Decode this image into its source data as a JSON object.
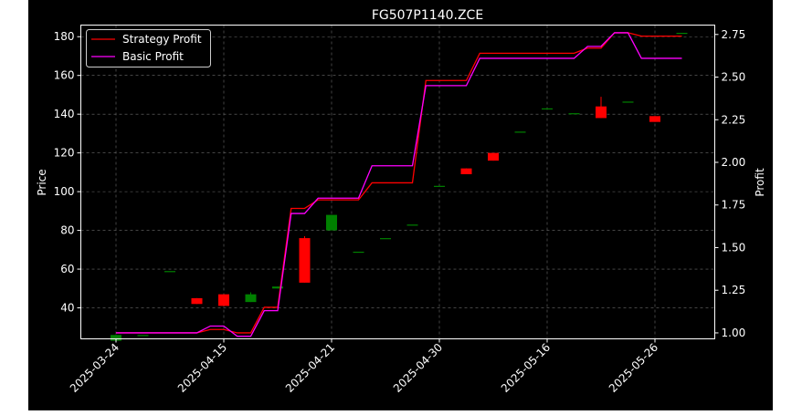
{
  "chart_data": {
    "type": "candlestick",
    "title": "FG507P1140.ZCE",
    "ylabel_left": "Price",
    "ylabel_right": "Profit",
    "xlabel": "",
    "ylim_left": [
      24,
      186
    ],
    "ylim_right": [
      0.965,
      2.805
    ],
    "grid": true,
    "legend_position": "top-left",
    "x_tick_labels": [
      "2025-03-24",
      "2025-04-15",
      "2025-04-21",
      "2025-04-30",
      "2025-05-16",
      "2025-05-26"
    ],
    "y_ticks_left": [
      40,
      60,
      80,
      100,
      120,
      140,
      160,
      180
    ],
    "y_ticks_right": [
      "1.00",
      "1.25",
      "1.50",
      "1.75",
      "2.00",
      "2.25",
      "2.50",
      "2.75"
    ],
    "colors": {
      "up": "#008000",
      "down": "#ff0000",
      "strategy": "#ff0000",
      "basic": "#ff00ff",
      "grid": "#6e6e6e",
      "background": "#000000",
      "text": "#ffffff"
    },
    "candles": [
      {
        "i": 0,
        "open": 23,
        "close": 26,
        "high": 26,
        "low": 23
      },
      {
        "i": 1,
        "open": 26,
        "close": 26,
        "high": 26,
        "low": 26
      },
      {
        "i": 2,
        "open": 59,
        "close": 59,
        "high": 59,
        "low": 59
      },
      {
        "i": 3,
        "open": 45,
        "close": 42,
        "high": 45,
        "low": 42
      },
      {
        "i": 4,
        "open": 47,
        "close": 41,
        "high": 47,
        "low": 41
      },
      {
        "i": 5,
        "open": 43,
        "close": 47,
        "high": 48,
        "low": 43
      },
      {
        "i": 6,
        "open": 50,
        "close": 51,
        "high": 51,
        "low": 50
      },
      {
        "i": 7,
        "open": 76,
        "close": 53,
        "high": 77,
        "low": 53
      },
      {
        "i": 8,
        "open": 80,
        "close": 88,
        "high": 88,
        "low": 80
      },
      {
        "i": 9,
        "open": 69,
        "close": 69,
        "high": 69,
        "low": 69
      },
      {
        "i": 10,
        "open": 76,
        "close": 76,
        "high": 76,
        "low": 76
      },
      {
        "i": 11,
        "open": 83,
        "close": 83,
        "high": 83,
        "low": 83
      },
      {
        "i": 12,
        "open": 103,
        "close": 103,
        "high": 103,
        "low": 103
      },
      {
        "i": 13,
        "open": 112,
        "close": 109,
        "high": 112,
        "low": 109
      },
      {
        "i": 14,
        "open": 120,
        "close": 116,
        "high": 120,
        "low": 116
      },
      {
        "i": 15,
        "open": 131,
        "close": 131,
        "high": 131,
        "low": 131
      },
      {
        "i": 16,
        "open": 143,
        "close": 143,
        "high": 143,
        "low": 143
      },
      {
        "i": 17,
        "open": 140.5,
        "close": 140.5,
        "high": 140.5,
        "low": 140.5
      },
      {
        "i": 18,
        "open": 144,
        "close": 138,
        "high": 149,
        "low": 138
      },
      {
        "i": 19,
        "open": 146.5,
        "close": 146.5,
        "high": 146.5,
        "low": 146.5
      },
      {
        "i": 20,
        "open": 139,
        "close": 136,
        "high": 139,
        "low": 136
      },
      {
        "i": 21,
        "open": 182,
        "close": 182,
        "high": 182,
        "low": 182
      }
    ],
    "series": [
      {
        "name": "Strategy Profit",
        "axis": "right",
        "x": [
          0,
          1,
          2,
          3,
          4,
          5,
          6,
          7,
          8,
          9,
          10,
          11,
          12,
          13,
          14,
          15,
          16,
          17,
          18,
          19,
          20,
          21
        ],
        "values": [
          1.0,
          1.0,
          1.0,
          1.0,
          1.02,
          1.0,
          1.15,
          1.73,
          1.78,
          1.78,
          1.88,
          1.88,
          2.48,
          2.48,
          2.64,
          2.64,
          2.64,
          2.64,
          2.67,
          2.76,
          2.74,
          2.74
        ]
      },
      {
        "name": "Basic Profit",
        "axis": "right",
        "x": [
          0,
          1,
          2,
          3,
          4,
          5,
          6,
          7,
          8,
          9,
          10,
          11,
          12,
          13,
          14,
          15,
          16,
          17,
          18,
          19,
          20,
          21
        ],
        "values": [
          1.0,
          1.0,
          1.0,
          1.0,
          1.04,
          0.98,
          1.13,
          1.7,
          1.79,
          1.79,
          1.98,
          1.98,
          2.45,
          2.45,
          2.61,
          2.61,
          2.61,
          2.61,
          2.68,
          2.76,
          2.61,
          2.61
        ]
      }
    ]
  }
}
